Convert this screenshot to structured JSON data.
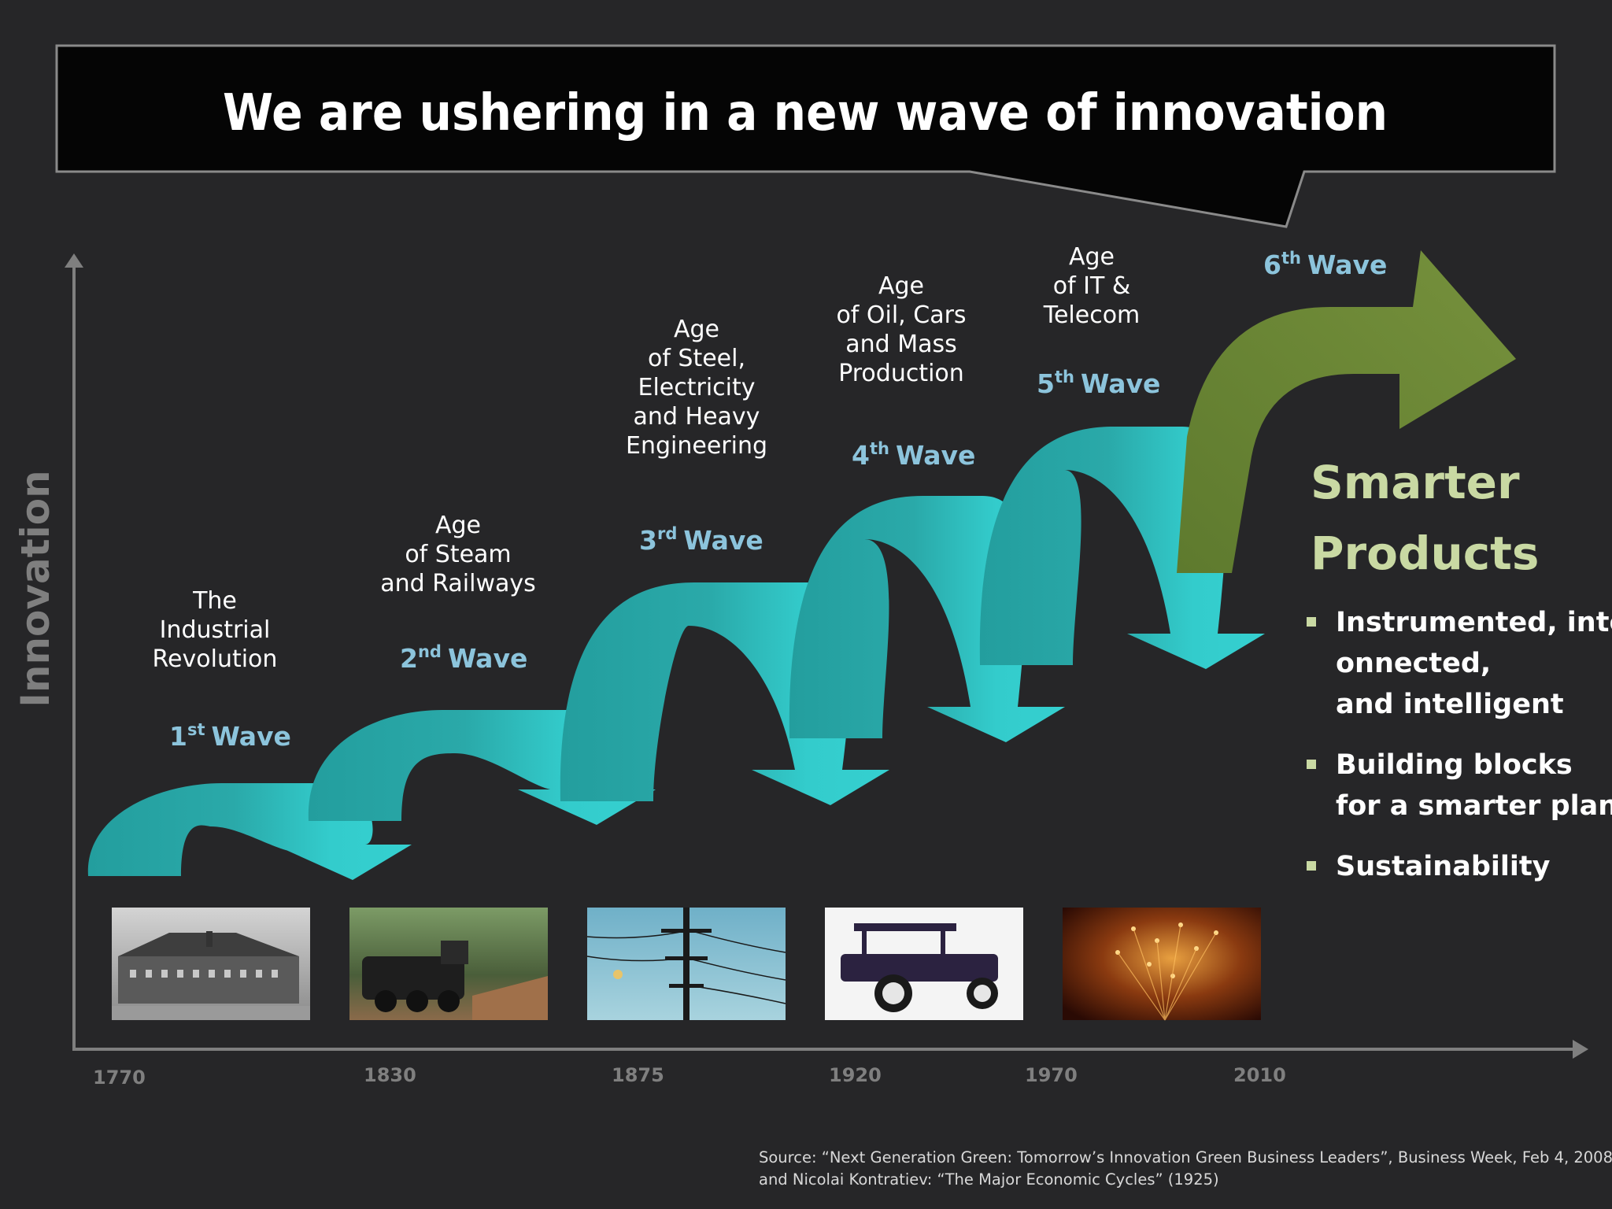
{
  "title": "We are ushering in a new wave of innovation",
  "y_axis_label": "Innovation",
  "x_axis_years": [
    "1770",
    "1830",
    "1875",
    "1920",
    "1970",
    "2010"
  ],
  "waves": [
    {
      "number": "1",
      "suffix": "st",
      "word": "Wave",
      "era_lines": [
        "The",
        "Industrial",
        "Revolution"
      ],
      "image": "industrial-factory"
    },
    {
      "number": "2",
      "suffix": "nd",
      "word": "Wave",
      "era_lines": [
        "Age",
        "of Steam",
        "and Railways"
      ],
      "image": "steam-locomotive"
    },
    {
      "number": "3",
      "suffix": "rd",
      "word": "Wave",
      "era_lines": [
        "Age",
        "of Steel,",
        "Electricity",
        "and Heavy",
        "Engineering"
      ],
      "image": "power-lines"
    },
    {
      "number": "4",
      "suffix": "th",
      "word": "Wave",
      "era_lines": [
        "Age",
        "of Oil, Cars",
        "and Mass",
        "Production"
      ],
      "image": "model-t-car"
    },
    {
      "number": "5",
      "suffix": "th",
      "word": "Wave",
      "era_lines": [
        "Age",
        "of IT &",
        "Telecom"
      ],
      "image": "fiber-optics"
    },
    {
      "number": "6",
      "suffix": "th",
      "word": "Wave",
      "era_lines": [],
      "image": ""
    }
  ],
  "smarter_products": {
    "heading_lines": [
      "Smarter",
      "Products"
    ],
    "bullets": [
      {
        "lines": [
          "Instrumented, interc",
          "onnected,",
          "and intelligent"
        ]
      },
      {
        "lines": [
          "Building blocks",
          "for a smarter planet"
        ]
      },
      {
        "lines": [
          "Sustainability"
        ]
      }
    ]
  },
  "source_lines": [
    "Source:  “Next Generation Green: Tomorrow’s Innovation Green Business Leaders”, Business Week, Feb 4, 2008",
    "and Nicolai Kontratiev: “The Major Economic Cycles” (1925)"
  ],
  "colors": {
    "background": "#262628",
    "wave_arrow": "#33cccc",
    "wave_arrow_dark": "#229999",
    "sixth_wave_arrow": "#6e8a38",
    "wave_label": "#8cc4dc",
    "sixth_wave_label": "#c9d9a3",
    "axis": "#7f7f7f"
  }
}
